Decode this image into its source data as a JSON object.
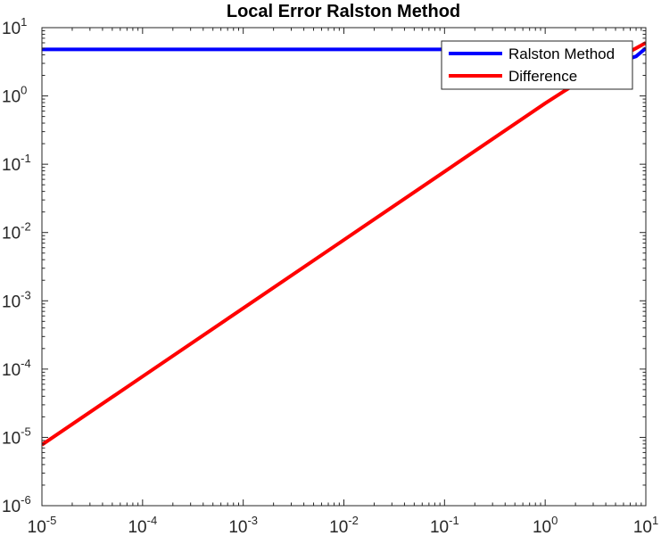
{
  "chart_data": {
    "type": "line",
    "title": "Local Error Ralston Method",
    "xlabel": "",
    "ylabel": "",
    "xscale": "log",
    "yscale": "log",
    "xlim": [
      1e-05,
      10
    ],
    "ylim": [
      1e-06,
      10
    ],
    "grid": false,
    "legend_position": "top-right",
    "x_ticks": [
      {
        "base": "10",
        "exp": "-5",
        "value": 1e-05
      },
      {
        "base": "10",
        "exp": "-4",
        "value": 0.0001
      },
      {
        "base": "10",
        "exp": "-3",
        "value": 0.001
      },
      {
        "base": "10",
        "exp": "-2",
        "value": 0.01
      },
      {
        "base": "10",
        "exp": "-1",
        "value": 0.1
      },
      {
        "base": "10",
        "exp": "0",
        "value": 1
      },
      {
        "base": "10",
        "exp": "1",
        "value": 10
      }
    ],
    "y_ticks": [
      {
        "base": "10",
        "exp": "-6",
        "value": 1e-06
      },
      {
        "base": "10",
        "exp": "-5",
        "value": 1e-05
      },
      {
        "base": "10",
        "exp": "-4",
        "value": 0.0001
      },
      {
        "base": "10",
        "exp": "-3",
        "value": 0.001
      },
      {
        "base": "10",
        "exp": "-2",
        "value": 0.01
      },
      {
        "base": "10",
        "exp": "-1",
        "value": 0.1
      },
      {
        "base": "10",
        "exp": "0",
        "value": 1
      },
      {
        "base": "10",
        "exp": "1",
        "value": 10
      }
    ],
    "series": [
      {
        "name": "Ralston Method",
        "color": "#0000ff",
        "x": [
          1e-05,
          0.0001,
          0.001,
          0.01,
          0.1,
          1,
          2,
          4,
          6,
          8,
          10
        ],
        "y": [
          4.8,
          4.8,
          4.8,
          4.8,
          4.8,
          4.7,
          4.4,
          3.6,
          3.3,
          3.8,
          5.0
        ]
      },
      {
        "name": "Difference",
        "color": "#ff0000",
        "x": [
          1e-05,
          0.0001,
          0.001,
          0.01,
          0.1,
          1,
          2,
          4,
          6,
          8,
          10
        ],
        "y": [
          7.8e-06,
          7.8e-05,
          0.00078,
          0.0078,
          0.078,
          0.78,
          1.5,
          2.9,
          4.0,
          5.0,
          6.0
        ]
      }
    ]
  }
}
